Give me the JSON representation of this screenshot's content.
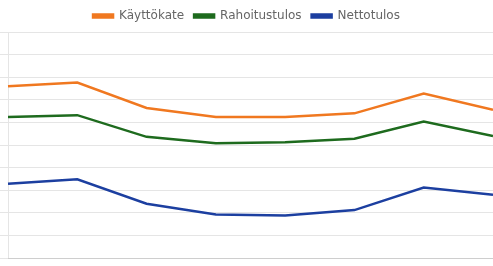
{
  "chart_data": {
    "type": "line",
    "categories": [
      null,
      null,
      null,
      null,
      null,
      null,
      null,
      null
    ],
    "series": [
      {
        "name": "Käyttökate",
        "color": "#F07820",
        "values": [
          7.0,
          7.2,
          5.8,
          5.3,
          5.3,
          5.5,
          6.6,
          5.7
        ]
      },
      {
        "name": "Rahoitustulos",
        "color": "#1E6B1E",
        "values": [
          5.3,
          5.4,
          4.2,
          3.85,
          3.9,
          4.1,
          5.05,
          4.25
        ]
      },
      {
        "name": "Nettotulos",
        "color": "#1C3FA0",
        "values": [
          1.6,
          1.85,
          0.5,
          -0.1,
          -0.15,
          0.15,
          1.4,
          1.0
        ]
      }
    ],
    "ylim": [
      -2.5,
      10.0
    ],
    "yticks": [
      -2.5,
      -1.25,
      0,
      1.25,
      2.5,
      3.75,
      5,
      6.25,
      7.5,
      8.75,
      10
    ],
    "grid": true,
    "legend": "top",
    "tick_labels": false,
    "line_style": "solid"
  }
}
